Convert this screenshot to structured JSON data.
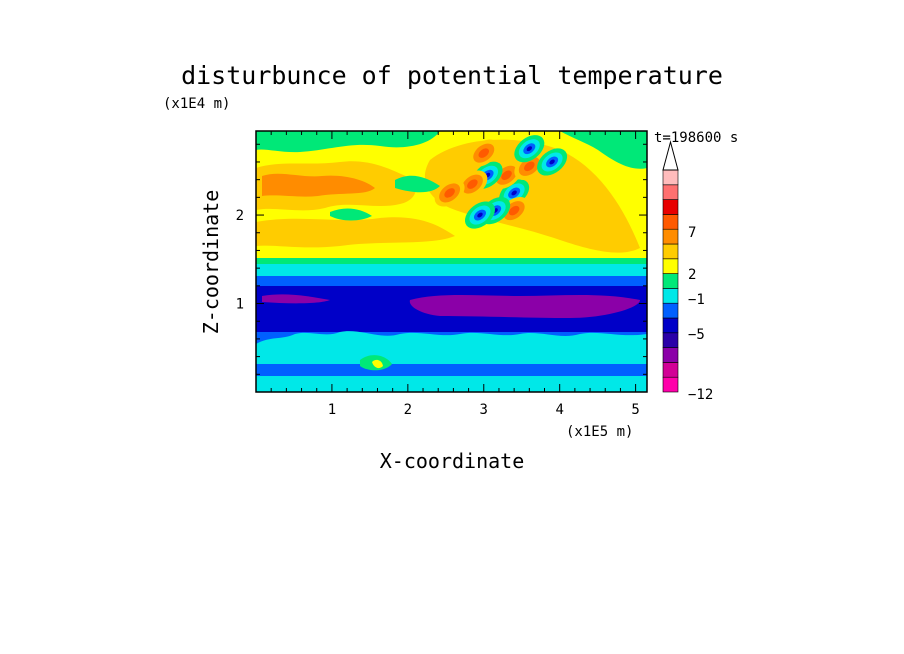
{
  "chart_data": {
    "type": "heatmap",
    "title": "disturbunce of potential temperature",
    "time_label": "t=198600 s",
    "xlabel": "X-coordinate",
    "ylabel": "Z-coordinate",
    "x_scale_label": "(x1E5 m)",
    "y_scale_label": "(x1E4 m)",
    "xlim": [
      0,
      5.15
    ],
    "ylim": [
      0,
      2.95
    ],
    "x_ticks": [
      "1",
      "2",
      "3",
      "4",
      "5"
    ],
    "y_ticks": [
      "1",
      "2"
    ],
    "colorbar_labels": [
      "7",
      "2",
      "−1",
      "−5",
      "−12"
    ],
    "colorbar_colors": [
      "#ff00aa",
      "#d20096",
      "#8b00a8",
      "#2a00a8",
      "#0000c8",
      "#0060ff",
      "#00e8e8",
      "#00e878",
      "#ffff00",
      "#ffcc00",
      "#ff8c00",
      "#ff5a00",
      "#e80000",
      "#ff7070",
      "#ffbcbc"
    ],
    "layers": [
      {
        "z_range": [
          0.0,
          0.06
        ],
        "value_class": "cyan"
      },
      {
        "z_range": [
          0.06,
          0.25
        ],
        "value_class": "blue"
      },
      {
        "z_range": [
          0.25,
          0.5
        ],
        "value_class": "cyan"
      },
      {
        "z_range": [
          0.5,
          1.0
        ],
        "value_class": "dark-blue"
      },
      {
        "z_range": [
          0.8,
          0.95
        ],
        "value_class": "purple"
      },
      {
        "z_range": [
          1.0,
          1.25
        ],
        "value_class": "blue"
      },
      {
        "z_range": [
          1.25,
          1.45
        ],
        "value_class": "cyan"
      },
      {
        "z_range": [
          1.45,
          2.95
        ],
        "value_class": "yellow"
      }
    ],
    "wave_cells": [
      {
        "x": 3.4,
        "z": 2.25,
        "sign": "negative"
      },
      {
        "x": 3.3,
        "z": 2.45,
        "sign": "positive"
      },
      {
        "x": 3.4,
        "z": 2.05,
        "sign": "positive"
      },
      {
        "x": 3.05,
        "z": 2.45,
        "sign": "negative"
      },
      {
        "x": 3.15,
        "z": 2.05,
        "sign": "negative"
      },
      {
        "x": 2.95,
        "z": 2.0,
        "sign": "negative"
      },
      {
        "x": 3.6,
        "z": 2.55,
        "sign": "positive"
      },
      {
        "x": 3.0,
        "z": 2.7,
        "sign": "positive"
      },
      {
        "x": 2.85,
        "z": 2.35,
        "sign": "positive"
      },
      {
        "x": 3.6,
        "z": 2.75,
        "sign": "negative"
      },
      {
        "x": 2.55,
        "z": 2.25,
        "sign": "positive"
      },
      {
        "x": 3.9,
        "z": 2.6,
        "sign": "negative"
      }
    ]
  }
}
